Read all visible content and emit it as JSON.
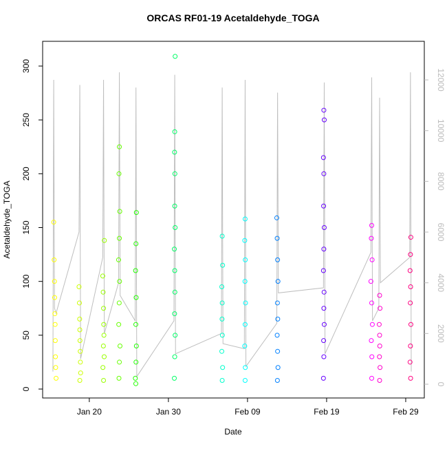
{
  "chart_data": {
    "type": "scatter",
    "title": "ORCAS RF01-19 Acetaldehyde_TOGA",
    "x_label": "Date",
    "y_label": "Acetaldehyde_TOGA",
    "xlim": [
      14.1,
      62.35
    ],
    "ylim": [
      -8.3,
      323
    ],
    "y2lim": [
      -543,
      13522
    ],
    "xticks": [
      {
        "value": 20,
        "label": "Jan 20"
      },
      {
        "value": 30,
        "label": "Jan 30"
      },
      {
        "value": 40,
        "label": "Feb 09"
      },
      {
        "value": 50,
        "label": "Feb 19"
      },
      {
        "value": 60,
        "label": "Feb 29"
      }
    ],
    "yticks": [
      0,
      50,
      100,
      150,
      200,
      250,
      300
    ],
    "y2ticks": [
      0,
      2000,
      4000,
      6000,
      8000,
      10000,
      12000
    ],
    "series": [
      {
        "color": "#FFFF00",
        "x": [
          15.5,
          15.55,
          15.6,
          15.62,
          15.65,
          15.68,
          15.7,
          15.72,
          15.75,
          15.8
        ],
        "values": [
          155,
          120,
          100,
          85,
          70,
          60,
          45,
          30,
          20,
          10
        ]
      },
      {
        "color": "#CCFF00",
        "x": [
          18.7,
          18.75,
          18.78,
          18.8,
          18.82,
          18.85,
          18.87,
          18.9,
          18.8
        ],
        "values": [
          95,
          80,
          65,
          55,
          45,
          35,
          25,
          15,
          8
        ]
      },
      {
        "color": "#99FF00",
        "x": [
          21.9,
          21.7,
          21.75,
          21.8,
          21.82,
          21.85,
          21.78,
          21.88,
          21.72,
          21.8
        ],
        "values": [
          138,
          105,
          90,
          75,
          60,
          50,
          40,
          30,
          20,
          8
        ]
      },
      {
        "color": "#66FF00",
        "x": [
          23.8,
          23.75,
          23.85,
          23.8,
          23.7,
          23.82,
          23.78,
          23.72,
          23.88,
          23.8,
          23.75
        ],
        "values": [
          225,
          200,
          165,
          140,
          120,
          100,
          80,
          60,
          40,
          25,
          10
        ]
      },
      {
        "color": "#22FF00",
        "x": [
          25.95,
          25.9,
          25.85,
          25.92,
          25.88,
          25.95,
          25.9,
          25.82,
          25.88
        ],
        "values": [
          164,
          135,
          110,
          85,
          60,
          40,
          25,
          10,
          5
        ]
      },
      {
        "color": "#00FF66",
        "x": [
          30.85,
          30.8,
          30.78,
          30.82,
          30.8,
          30.85,
          30.75,
          30.8,
          30.82,
          30.78,
          30.85,
          30.8,
          30.75
        ],
        "values": [
          309,
          239,
          220,
          200,
          170,
          150,
          130,
          110,
          90,
          70,
          50,
          30,
          10
        ]
      },
      {
        "color": "#00FFCC",
        "x": [
          36.8,
          36.85,
          36.75,
          36.8,
          36.78,
          36.82,
          36.75,
          36.85,
          36.8
        ],
        "values": [
          142,
          115,
          95,
          80,
          65,
          50,
          35,
          20,
          8
        ]
      },
      {
        "color": "#00FFFF",
        "x": [
          39.7,
          39.65,
          39.72,
          39.68,
          39.75,
          39.7,
          39.65,
          39.72,
          39.7
        ],
        "values": [
          158,
          138,
          120,
          100,
          80,
          60,
          40,
          20,
          8
        ]
      },
      {
        "color": "#0080FF",
        "x": [
          43.7,
          43.75,
          43.8,
          43.85,
          43.78,
          43.82,
          43.75,
          43.8,
          43.85,
          43.78
        ],
        "values": [
          159,
          140,
          120,
          100,
          80,
          65,
          50,
          35,
          20,
          8
        ]
      },
      {
        "color": "#6600FF",
        "x": [
          49.65,
          49.7,
          49.6,
          49.65,
          49.62,
          49.7,
          49.65,
          49.6,
          49.68,
          49.65,
          49.7,
          49.62,
          49.65,
          49.6
        ],
        "values": [
          259,
          250,
          215,
          200,
          170,
          150,
          130,
          110,
          90,
          75,
          60,
          45,
          30,
          10
        ]
      },
      {
        "color": "#FF00FF",
        "x": [
          55.7,
          55.65,
          55.75,
          55.6,
          55.7,
          55.78,
          55.65,
          55.72,
          55.7
        ],
        "values": [
          152,
          140,
          120,
          100,
          80,
          60,
          45,
          30,
          10
        ]
      },
      {
        "color": "#FF00CC",
        "x": [
          56.7,
          56.75,
          56.65,
          56.7,
          56.72,
          56.68,
          56.75,
          56.7
        ],
        "values": [
          87,
          75,
          60,
          50,
          40,
          30,
          20,
          8
        ]
      },
      {
        "color": "#FF0080",
        "x": [
          60.65,
          60.6,
          60.55,
          60.62,
          60.58,
          60.65,
          60.6,
          60.55,
          60.62
        ],
        "values": [
          141,
          125,
          110,
          95,
          80,
          60,
          40,
          25,
          10
        ]
      },
      {
        "type": "line",
        "axis": "y2",
        "color": "#BEBEBE",
        "x": [
          15.4,
          15.5,
          15.6,
          15.8,
          18.7,
          18.8,
          18.9,
          21.7,
          21.8,
          21.9,
          23.7,
          23.8,
          23.9,
          25.8,
          25.9,
          26.0,
          30.7,
          30.8,
          30.9,
          36.7,
          36.8,
          36.9,
          39.6,
          39.7,
          39.8,
          43.7,
          43.8,
          43.9,
          49.6,
          49.7,
          49.8,
          55.6,
          55.7,
          55.8,
          56.6,
          56.7,
          56.8,
          60.5,
          60.6,
          60.7
        ],
        "values": [
          500,
          12000,
          3000,
          2800,
          6000,
          11800,
          1000,
          5000,
          12000,
          2000,
          4000,
          12300,
          3500,
          2500,
          11700,
          300,
          2500,
          12200,
          1200,
          2000,
          11700,
          1600,
          1400,
          12000,
          700,
          2400,
          11500,
          3600,
          3800,
          11900,
          1200,
          5200,
          12100,
          2500,
          3000,
          11300,
          4000,
          5000,
          12300,
          500
        ]
      }
    ]
  }
}
